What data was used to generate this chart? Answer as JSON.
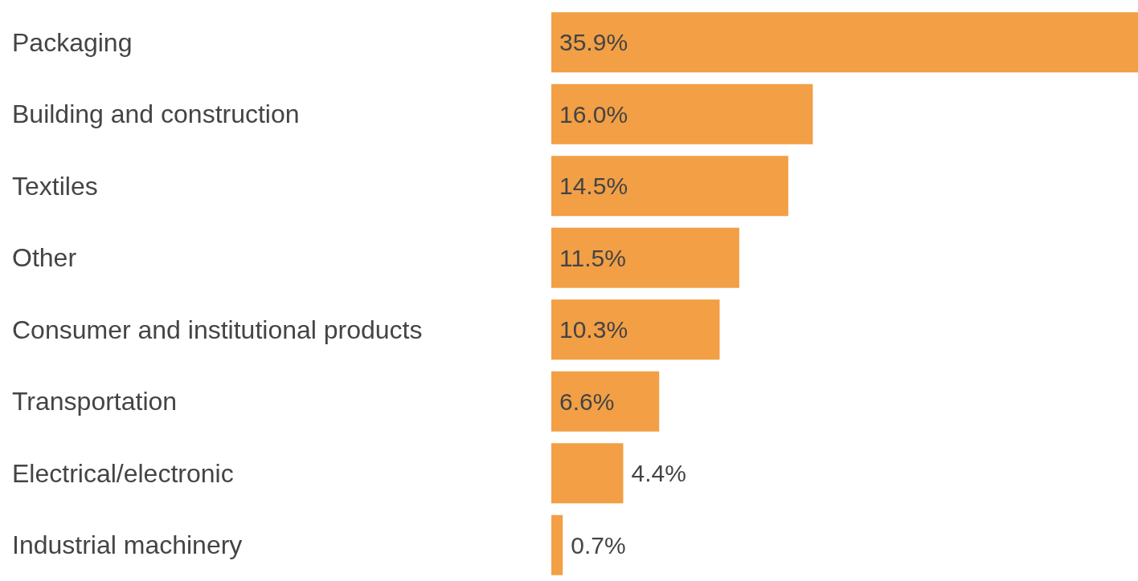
{
  "chart_data": {
    "type": "bar",
    "orientation": "horizontal",
    "categories": [
      "Packaging",
      "Building and construction",
      "Textiles",
      "Other",
      "Consumer and institutional products",
      "Transportation",
      "Electrical/electronic",
      "Industrial machinery"
    ],
    "values": [
      35.9,
      16.0,
      14.5,
      11.5,
      10.3,
      6.6,
      4.4,
      0.7
    ],
    "value_labels": [
      "35.9%",
      "16.0%",
      "14.5%",
      "11.5%",
      "10.3%",
      "6.6%",
      "4.4%",
      "0.7%"
    ],
    "color": "#f29f45"
  }
}
